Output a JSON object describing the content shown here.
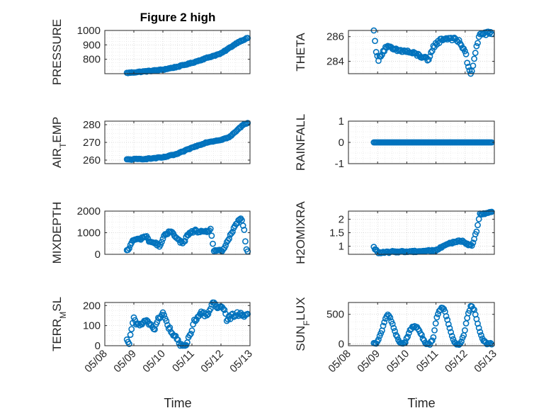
{
  "figure": {
    "title": "Figure 2 high",
    "marker_color": "#0072BD",
    "x_tick_labels": [
      "05/08",
      "05/09",
      "05/10",
      "05/11",
      "05/12",
      "05/13"
    ],
    "x_label": "Time"
  },
  "chart_data": [
    {
      "type": "scatter",
      "ylabel": "PRESSURE",
      "title": "Figure 2 high",
      "xlim": [
        "05/08",
        "05/13"
      ],
      "ylim": [
        700,
        1000
      ],
      "yticks": [
        800,
        900,
        1000
      ],
      "x_start_day": 8.76,
      "x_end_day": 12.94,
      "control_points": [
        [
          8.76,
          705
        ],
        [
          9.5,
          718
        ],
        [
          10.0,
          728
        ],
        [
          10.5,
          748
        ],
        [
          11.0,
          775
        ],
        [
          11.6,
          815
        ],
        [
          12.0,
          840
        ],
        [
          12.3,
          880
        ],
        [
          12.6,
          920
        ],
        [
          12.94,
          950
        ]
      ],
      "step": 0.04,
      "noise": 3
    },
    {
      "type": "scatter",
      "ylabel": "THETA",
      "xlim": [
        "05/08",
        "05/13"
      ],
      "ylim": [
        283,
        286.5
      ],
      "yticks": [
        284,
        286
      ],
      "x_start_day": 8.87,
      "x_end_day": 12.94,
      "control_points": [
        [
          8.87,
          286.6
        ],
        [
          8.92,
          285.6
        ],
        [
          8.96,
          284.6
        ],
        [
          9.02,
          284.0
        ],
        [
          9.1,
          284.5
        ],
        [
          9.3,
          285.2
        ],
        [
          9.6,
          284.9
        ],
        [
          10.0,
          284.8
        ],
        [
          10.4,
          284.5
        ],
        [
          10.6,
          284.3
        ],
        [
          10.75,
          284.0
        ],
        [
          10.9,
          285.2
        ],
        [
          11.2,
          285.8
        ],
        [
          11.5,
          285.9
        ],
        [
          11.8,
          285.6
        ],
        [
          12.0,
          284.8
        ],
        [
          12.1,
          283.6
        ],
        [
          12.2,
          282.7
        ],
        [
          12.35,
          284.8
        ],
        [
          12.5,
          286.2
        ],
        [
          12.94,
          286.3
        ]
      ],
      "step": 0.04,
      "noise": 0.15
    },
    {
      "type": "scatter",
      "ylabel": "AIR_TEMP",
      "xlim": [
        "05/08",
        "05/13"
      ],
      "ylim": [
        258,
        282
      ],
      "yticks": [
        260,
        270,
        280
      ],
      "x_start_day": 8.76,
      "x_end_day": 12.94,
      "control_points": [
        [
          8.76,
          260.3
        ],
        [
          9.5,
          260.8
        ],
        [
          10.0,
          261.5
        ],
        [
          10.5,
          263.5
        ],
        [
          11.0,
          267.0
        ],
        [
          11.5,
          270.0
        ],
        [
          12.0,
          271.5
        ],
        [
          12.3,
          273.0
        ],
        [
          12.6,
          277.5
        ],
        [
          12.8,
          280.5
        ],
        [
          12.94,
          281
        ]
      ],
      "step": 0.04,
      "noise": 0.25
    },
    {
      "type": "scatter",
      "ylabel": "RAINFALL",
      "xlim": [
        "05/08",
        "05/13"
      ],
      "ylim": [
        -1,
        1
      ],
      "yticks": [
        -1,
        0,
        1
      ],
      "x_start_day": 8.87,
      "x_end_day": 12.94,
      "control_points": [
        [
          8.87,
          0
        ],
        [
          12.94,
          0
        ]
      ],
      "step": 0.04,
      "noise": 0
    },
    {
      "type": "scatter",
      "ylabel": "MIXDEPTH",
      "xlim": [
        "05/08",
        "05/13"
      ],
      "ylim": [
        0,
        2000
      ],
      "yticks": [
        0,
        1000,
        2000
      ],
      "x_start_day": 8.76,
      "x_end_day": 12.94,
      "control_points": [
        [
          8.76,
          150
        ],
        [
          8.85,
          300
        ],
        [
          8.95,
          650
        ],
        [
          9.2,
          700
        ],
        [
          9.4,
          850
        ],
        [
          9.55,
          600
        ],
        [
          9.75,
          500
        ],
        [
          9.9,
          400
        ],
        [
          10.05,
          850
        ],
        [
          10.3,
          1100
        ],
        [
          10.5,
          700
        ],
        [
          10.7,
          500
        ],
        [
          10.85,
          900
        ],
        [
          11.1,
          1100
        ],
        [
          11.4,
          1000
        ],
        [
          11.65,
          1150
        ],
        [
          11.75,
          200
        ],
        [
          11.9,
          150
        ],
        [
          12.05,
          150
        ],
        [
          12.3,
          800
        ],
        [
          12.55,
          1450
        ],
        [
          12.7,
          1700
        ],
        [
          12.8,
          1100
        ],
        [
          12.86,
          300
        ],
        [
          12.94,
          50
        ]
      ],
      "step": 0.04,
      "noise": 60
    },
    {
      "type": "scatter",
      "ylabel": "H2OMIXRA",
      "xlim": [
        "05/08",
        "05/13"
      ],
      "ylim": [
        0.7,
        2.3
      ],
      "yticks": [
        1,
        1.5,
        2
      ],
      "x_start_day": 8.87,
      "x_end_day": 12.94,
      "control_points": [
        [
          8.87,
          0.95
        ],
        [
          8.95,
          0.85
        ],
        [
          9.05,
          0.75
        ],
        [
          9.6,
          0.8
        ],
        [
          10.0,
          0.8
        ],
        [
          10.5,
          0.82
        ],
        [
          11.0,
          0.85
        ],
        [
          11.1,
          0.9
        ],
        [
          11.3,
          1.05
        ],
        [
          11.6,
          1.15
        ],
        [
          11.9,
          1.2
        ],
        [
          12.1,
          1.05
        ],
        [
          12.25,
          1.05
        ],
        [
          12.4,
          1.6
        ],
        [
          12.5,
          2.2
        ],
        [
          12.94,
          2.25
        ]
      ],
      "step": 0.04,
      "noise": 0.03
    },
    {
      "type": "scatter",
      "ylabel": "TERR_MSL",
      "xlim": [
        "05/08",
        "05/13"
      ],
      "ylim": [
        0,
        215
      ],
      "yticks": [
        0,
        100,
        200
      ],
      "x_start_day": 8.76,
      "x_end_day": 12.94,
      "control_points": [
        [
          8.76,
          20
        ],
        [
          8.82,
          0
        ],
        [
          8.9,
          60
        ],
        [
          9.0,
          150
        ],
        [
          9.1,
          100
        ],
        [
          9.3,
          110
        ],
        [
          9.5,
          120
        ],
        [
          9.7,
          80
        ],
        [
          9.85,
          140
        ],
        [
          10.0,
          160
        ],
        [
          10.15,
          110
        ],
        [
          10.3,
          60
        ],
        [
          10.45,
          40
        ],
        [
          10.6,
          0
        ],
        [
          10.8,
          0
        ],
        [
          10.95,
          60
        ],
        [
          11.1,
          130
        ],
        [
          11.3,
          160
        ],
        [
          11.5,
          150
        ],
        [
          11.7,
          210
        ],
        [
          11.9,
          190
        ],
        [
          12.1,
          180
        ],
        [
          12.2,
          130
        ],
        [
          12.4,
          150
        ],
        [
          12.6,
          160
        ],
        [
          12.94,
          150
        ]
      ],
      "step": 0.04,
      "noise": 12
    },
    {
      "type": "scatter",
      "ylabel": "SUN_FLUX",
      "xlim": [
        "05/08",
        "05/13"
      ],
      "ylim": [
        -30,
        700
      ],
      "yticks": [
        0,
        500
      ],
      "x_start_day": 8.87,
      "x_end_day": 12.94,
      "control_points": [
        [
          8.87,
          0
        ],
        [
          8.95,
          0
        ],
        [
          9.1,
          150
        ],
        [
          9.25,
          400
        ],
        [
          9.35,
          500
        ],
        [
          9.45,
          420
        ],
        [
          9.6,
          200
        ],
        [
          9.75,
          30
        ],
        [
          9.85,
          0
        ],
        [
          9.95,
          40
        ],
        [
          10.1,
          220
        ],
        [
          10.2,
          300
        ],
        [
          10.35,
          280
        ],
        [
          10.5,
          150
        ],
        [
          10.65,
          0
        ],
        [
          10.8,
          0
        ],
        [
          10.9,
          100
        ],
        [
          11.05,
          500
        ],
        [
          11.2,
          620
        ],
        [
          11.3,
          560
        ],
        [
          11.45,
          300
        ],
        [
          11.6,
          50
        ],
        [
          11.7,
          0
        ],
        [
          11.85,
          0
        ],
        [
          11.95,
          150
        ],
        [
          12.1,
          500
        ],
        [
          12.2,
          650
        ],
        [
          12.3,
          580
        ],
        [
          12.45,
          300
        ],
        [
          12.6,
          80
        ],
        [
          12.75,
          0
        ],
        [
          12.94,
          0
        ]
      ],
      "step": 0.04,
      "noise": 15
    }
  ]
}
